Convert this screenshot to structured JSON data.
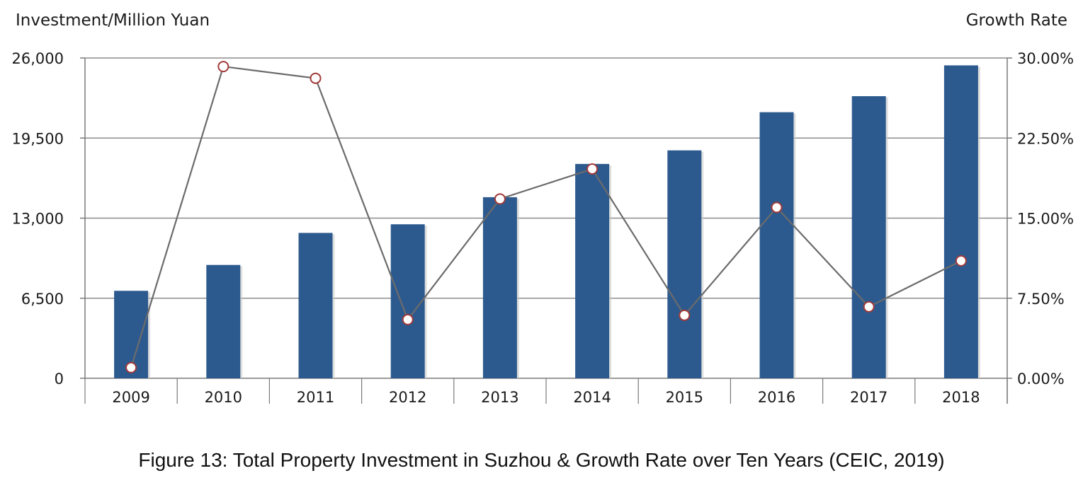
{
  "caption": "Figure 13: Total Property Investment in Suzhou & Growth Rate over Ten Years (CEIC, 2019)",
  "chart_data": {
    "type": "bar",
    "title": "",
    "xlabel": "",
    "ylabel": "Investment/Million Yuan",
    "y2label": "Growth Rate",
    "categories": [
      "2009",
      "2010",
      "2011",
      "2012",
      "2013",
      "2014",
      "2015",
      "2016",
      "2017",
      "2018"
    ],
    "ylim": [
      0,
      26000
    ],
    "yticks": [
      "0",
      "6,500",
      "13,000",
      "19,500",
      "26,000"
    ],
    "y2lim": [
      0,
      30
    ],
    "y2ticks": [
      "0.00%",
      "7.50%",
      "15.00%",
      "22.50%",
      "30.00%"
    ],
    "grid": true,
    "legend": "none",
    "series": [
      {
        "type": "bar",
        "axis": "left",
        "color": "#2d5a8e",
        "values": [
          7100,
          9200,
          11800,
          12500,
          14700,
          17400,
          18500,
          21600,
          22900,
          25400
        ]
      },
      {
        "type": "line",
        "axis": "right",
        "color": "#6b6b6b",
        "marker_edge_color": "#a33a3a",
        "values": [
          1.0,
          29.2,
          28.1,
          5.5,
          16.8,
          19.6,
          5.9,
          16.0,
          6.7,
          11.0
        ]
      }
    ]
  }
}
